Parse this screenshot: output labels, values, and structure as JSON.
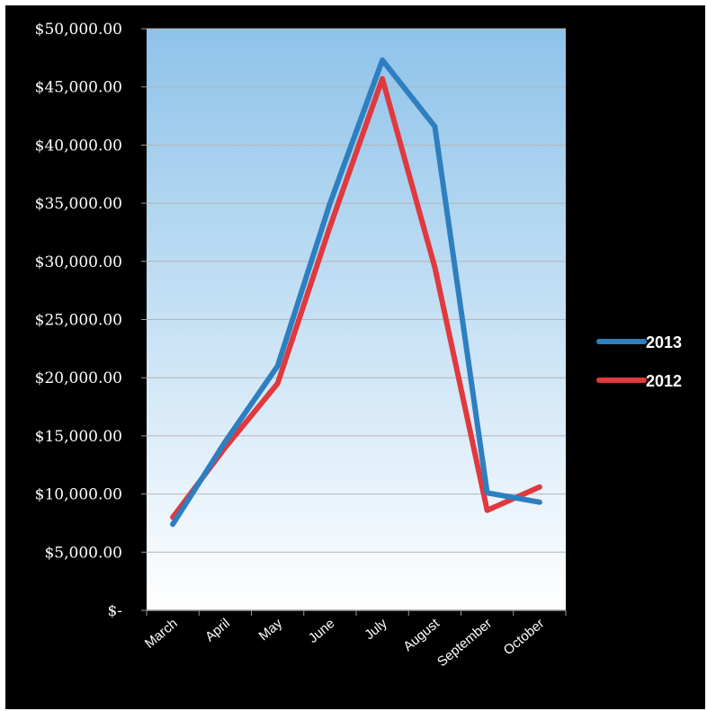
{
  "chart_data": {
    "type": "line",
    "categories": [
      "March",
      "April",
      "May",
      "June",
      "July",
      "August",
      "September",
      "October"
    ],
    "series": [
      {
        "name": "2013",
        "color": "#2e7fc0",
        "values": [
          7400,
          14500,
          21000,
          35000,
          47300,
          41600,
          10100,
          9300
        ]
      },
      {
        "name": "2012",
        "color": "#e0393e",
        "values": [
          8000,
          14000,
          19500,
          33000,
          45700,
          29500,
          8600,
          10600
        ]
      }
    ],
    "y_ticks": [
      {
        "value": 0,
        "label": "$-"
      },
      {
        "value": 5000,
        "label": "$5,000.00"
      },
      {
        "value": 10000,
        "label": "$10,000.00"
      },
      {
        "value": 15000,
        "label": "$15,000.00"
      },
      {
        "value": 20000,
        "label": "$20,000.00"
      },
      {
        "value": 25000,
        "label": "$25,000.00"
      },
      {
        "value": 30000,
        "label": "$30,000.00"
      },
      {
        "value": 35000,
        "label": "$35,000.00"
      },
      {
        "value": 40000,
        "label": "$40,000.00"
      },
      {
        "value": 45000,
        "label": "$45,000.00"
      },
      {
        "value": 50000,
        "label": "$50,000.00"
      }
    ],
    "ylim": [
      0,
      50000
    ],
    "grid": true,
    "legend_position": "right",
    "background": "#000000",
    "plot_gradient": [
      "#8ec3ea",
      "#ffffff"
    ]
  }
}
